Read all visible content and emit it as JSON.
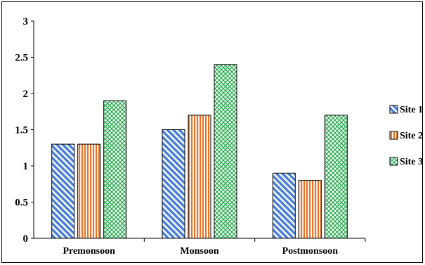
{
  "chart_data": {
    "type": "bar",
    "title": "",
    "xlabel": "",
    "ylabel": "",
    "categories": [
      "Premonsoon",
      "Monsoon",
      "Postmonsoon"
    ],
    "series": [
      {
        "name": "Site 1",
        "values": [
          1.3,
          1.5,
          0.9
        ],
        "color": "#4a7fd6",
        "pattern": "diagonal-stripes"
      },
      {
        "name": "Site 2",
        "values": [
          1.3,
          1.7,
          0.8
        ],
        "color": "#e8742a",
        "pattern": "vertical-stripes"
      },
      {
        "name": "Site 3",
        "values": [
          1.9,
          2.4,
          1.7
        ],
        "color": "#22a84a",
        "pattern": "crosshatch"
      }
    ],
    "ylim": [
      0,
      3
    ],
    "yticks": [
      0,
      0.5,
      1,
      1.5,
      2,
      2.5,
      3
    ],
    "ytick_labels": [
      "0",
      "0.5",
      "1",
      "1.5",
      "2",
      "2.5",
      "3"
    ],
    "grid": false,
    "legend_position": "right"
  }
}
